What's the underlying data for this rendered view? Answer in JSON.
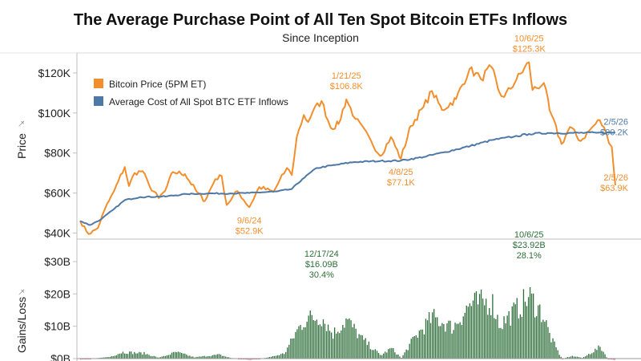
{
  "chart_data": [
    {
      "type": "line",
      "title": "The Average Purchase Point of All Ten Spot Bitcoin ETFs Inflows",
      "subtitle": "Since Inception",
      "ylabel": "Price",
      "ylim": [
        37000,
        130000
      ],
      "yticks": [
        40000,
        60000,
        80000,
        100000,
        120000
      ],
      "ytick_labels": [
        "$40K",
        "$60K",
        "$80K",
        "$100K",
        "$120K"
      ],
      "x_range": [
        "2024-01-11",
        "2026-02-05"
      ],
      "legend_position": "top-left",
      "series": [
        {
          "name": "Bitcoin Price (5PM ET)",
          "color": "#f28e2b",
          "points": [
            [
              "2024-01-11",
              46000
            ],
            [
              "2024-01-23",
              39500
            ],
            [
              "2024-02-05",
              42500
            ],
            [
              "2024-02-15",
              52000
            ],
            [
              "2024-02-28",
              61000
            ],
            [
              "2024-03-05",
              66000
            ],
            [
              "2024-03-14",
              73000
            ],
            [
              "2024-03-20",
              63500
            ],
            [
              "2024-03-28",
              70000
            ],
            [
              "2024-04-08",
              71000
            ],
            [
              "2024-04-18",
              63500
            ],
            [
              "2024-05-01",
              57500
            ],
            [
              "2024-05-10",
              61000
            ],
            [
              "2024-05-21",
              70500
            ],
            [
              "2024-06-07",
              69500
            ],
            [
              "2024-06-24",
              60500
            ],
            [
              "2024-07-05",
              56000
            ],
            [
              "2024-07-20",
              67000
            ],
            [
              "2024-07-29",
              68500
            ],
            [
              "2024-08-05",
              54000
            ],
            [
              "2024-08-20",
              61000
            ],
            [
              "2024-09-06",
              52900
            ],
            [
              "2024-09-20",
              63000
            ],
            [
              "2024-10-10",
              60500
            ],
            [
              "2024-10-29",
              72500
            ],
            [
              "2024-11-05",
              69000
            ],
            [
              "2024-11-12",
              88000
            ],
            [
              "2024-11-22",
              99000
            ],
            [
              "2024-11-28",
              95500
            ],
            [
              "2024-12-05",
              101000
            ],
            [
              "2024-12-17",
              106000
            ],
            [
              "2024-12-30",
              92500
            ],
            [
              "2025-01-10",
              94500
            ],
            [
              "2025-01-21",
              106800
            ],
            [
              "2025-02-03",
              97000
            ],
            [
              "2025-02-25",
              86000
            ],
            [
              "2025-03-10",
              78500
            ],
            [
              "2025-03-25",
              88000
            ],
            [
              "2025-04-08",
              77100
            ],
            [
              "2025-04-22",
              93500
            ],
            [
              "2025-05-10",
              103000
            ],
            [
              "2025-05-22",
              111000
            ],
            [
              "2025-06-05",
              101500
            ],
            [
              "2025-06-25",
              107000
            ],
            [
              "2025-07-14",
              122000
            ],
            [
              "2025-07-30",
              117000
            ],
            [
              "2025-08-14",
              123000
            ],
            [
              "2025-08-25",
              110500
            ],
            [
              "2025-09-01",
              108000
            ],
            [
              "2025-09-18",
              116500
            ],
            [
              "2025-10-06",
              125300
            ],
            [
              "2025-10-11",
              111500
            ],
            [
              "2025-10-27",
              115000
            ],
            [
              "2025-11-04",
              101500
            ],
            [
              "2025-11-21",
              84500
            ],
            [
              "2025-12-03",
              93000
            ],
            [
              "2025-12-18",
              86000
            ],
            [
              "2026-01-05",
              93500
            ],
            [
              "2026-01-14",
              96500
            ],
            [
              "2026-01-24",
              89000
            ],
            [
              "2026-01-31",
              83000
            ],
            [
              "2026-02-05",
              63900
            ]
          ]
        },
        {
          "name": "Average Cost of All Spot BTC ETF Inflows",
          "color": "#4e79a7",
          "points": [
            [
              "2024-01-11",
              46000
            ],
            [
              "2024-01-25",
              44000
            ],
            [
              "2024-02-10",
              47000
            ],
            [
              "2024-02-28",
              52000
            ],
            [
              "2024-03-14",
              56500
            ],
            [
              "2024-04-05",
              58000
            ],
            [
              "2024-05-10",
              58300
            ],
            [
              "2024-06-10",
              59500
            ],
            [
              "2024-07-10",
              59800
            ],
            [
              "2024-08-10",
              59800
            ],
            [
              "2024-09-06",
              60000
            ],
            [
              "2024-10-15",
              60800
            ],
            [
              "2024-11-05",
              62000
            ],
            [
              "2024-11-20",
              67000
            ],
            [
              "2024-12-10",
              72500
            ],
            [
              "2025-01-05",
              74000
            ],
            [
              "2025-02-01",
              75500
            ],
            [
              "2025-03-10",
              76000
            ],
            [
              "2025-04-08",
              76200
            ],
            [
              "2025-05-10",
              78000
            ],
            [
              "2025-06-10",
              80500
            ],
            [
              "2025-07-15",
              83500
            ],
            [
              "2025-08-15",
              86500
            ],
            [
              "2025-09-15",
              88200
            ],
            [
              "2025-10-06",
              89500
            ],
            [
              "2025-11-01",
              90000
            ],
            [
              "2025-12-01",
              90000
            ],
            [
              "2026-01-10",
              90100
            ],
            [
              "2026-02-05",
              90200
            ]
          ]
        }
      ],
      "annotations": [
        {
          "series": 0,
          "date": "2024-09-06",
          "lines": [
            "9/6/24",
            "$52.9K"
          ],
          "placement": "below"
        },
        {
          "series": 0,
          "date": "2025-01-21",
          "lines": [
            "1/21/25",
            "$106.8K"
          ],
          "placement": "above"
        },
        {
          "series": 0,
          "date": "2025-04-08",
          "lines": [
            "4/8/25",
            "$77.1K"
          ],
          "placement": "below"
        },
        {
          "series": 0,
          "date": "2025-10-06",
          "lines": [
            "10/6/25",
            "$125.3K"
          ],
          "placement": "above"
        },
        {
          "series": 1,
          "date": "2026-02-05",
          "lines": [
            "2/5/26",
            "$90.2K"
          ],
          "placement": "right-up"
        },
        {
          "series": 0,
          "date": "2026-02-05",
          "lines": [
            "2/5/26",
            "$63.9K"
          ],
          "placement": "right-down"
        }
      ]
    },
    {
      "type": "bar",
      "ylabel": "Gains/Loss",
      "ylim": [
        0,
        32
      ],
      "yunit": "B",
      "yticks": [
        0,
        10,
        20,
        30
      ],
      "ytick_labels": [
        "$0B",
        "$10B",
        "$20B",
        "$30B"
      ],
      "x_range": [
        "2024-01-11",
        "2026-02-05"
      ],
      "positive_color": "#2d6e3a",
      "negative_color": "#c0325a",
      "envelope": [
        [
          "2024-01-11",
          -0.3
        ],
        [
          "2024-02-20",
          0.5
        ],
        [
          "2024-03-10",
          2.5
        ],
        [
          "2024-04-10",
          2.0
        ],
        [
          "2024-05-01",
          0.3
        ],
        [
          "2024-05-25",
          2.5
        ],
        [
          "2024-06-20",
          0.5
        ],
        [
          "2024-07-25",
          1.5
        ],
        [
          "2024-08-10",
          0.2
        ],
        [
          "2024-09-06",
          -0.4
        ],
        [
          "2024-10-01",
          0.3
        ],
        [
          "2024-10-25",
          2.0
        ],
        [
          "2024-11-12",
          11.0
        ],
        [
          "2024-11-25",
          15.5
        ],
        [
          "2024-12-17",
          16.09
        ],
        [
          "2025-01-01",
          9.5
        ],
        [
          "2025-01-21",
          15.0
        ],
        [
          "2025-02-10",
          8.0
        ],
        [
          "2025-03-10",
          1.2
        ],
        [
          "2025-03-25",
          4.0
        ],
        [
          "2025-04-08",
          0.2
        ],
        [
          "2025-04-25",
          7.5
        ],
        [
          "2025-05-22",
          16.0
        ],
        [
          "2025-06-20",
          12.0
        ],
        [
          "2025-07-14",
          21.0
        ],
        [
          "2025-08-14",
          22.0
        ],
        [
          "2025-08-25",
          13.0
        ],
        [
          "2025-09-18",
          19.0
        ],
        [
          "2025-10-06",
          23.92
        ],
        [
          "2025-10-25",
          17.0
        ],
        [
          "2025-11-05",
          8.0
        ],
        [
          "2025-11-21",
          -0.2
        ],
        [
          "2025-12-05",
          1.0
        ],
        [
          "2025-12-20",
          0.2
        ],
        [
          "2026-01-14",
          4.5
        ],
        [
          "2026-01-25",
          -0.2
        ],
        [
          "2026-02-05",
          -0.4
        ]
      ],
      "annotations": [
        {
          "date": "2024-12-17",
          "lines": [
            "12/17/24",
            "$16.09B",
            "30.4%"
          ]
        },
        {
          "date": "2025-10-06",
          "lines": [
            "10/6/25",
            "$23.92B",
            "28.1%"
          ]
        }
      ]
    }
  ]
}
